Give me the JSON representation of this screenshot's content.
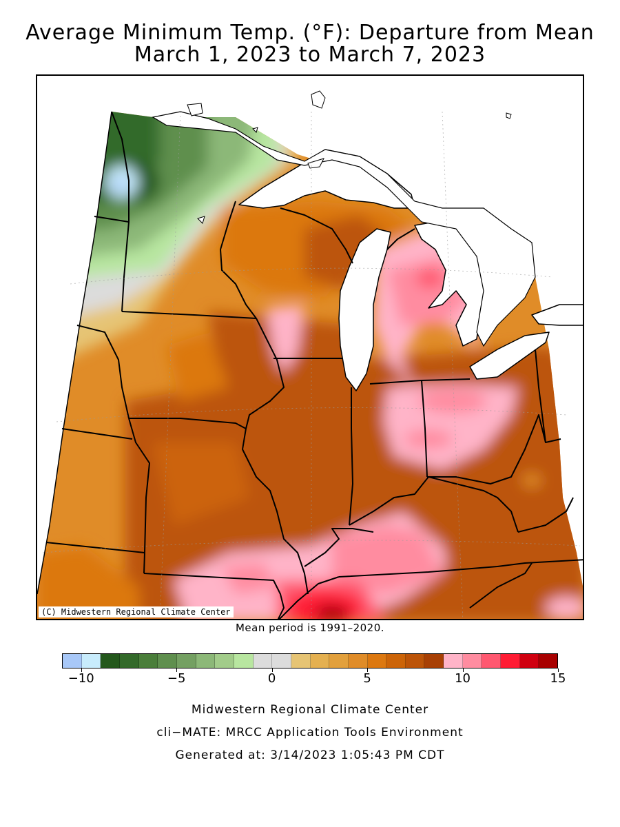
{
  "title": {
    "line1": "Average Minimum Temp. (°F): Departure from Mean",
    "line2": "March 1, 2023 to March 7, 2023"
  },
  "map": {
    "copyright": "(C) Midwestern Regional Climate Center",
    "region": "Upper Midwest",
    "variable": "Average minimum temperature departure from mean",
    "units": "°F"
  },
  "mean_note": "Mean period is 1991–2020.",
  "legend": {
    "colors": [
      "#a8c8f8",
      "#c8ecfc",
      "#24581c",
      "#336a2a",
      "#4a7e3a",
      "#5f8f4e",
      "#74a062",
      "#8cb878",
      "#a2cc8a",
      "#b8e6a0",
      "#dcdcdc",
      "#dcdcdc",
      "#e6c474",
      "#e4b050",
      "#e2a03c",
      "#e08c28",
      "#dc7810",
      "#cc6408",
      "#bc5408",
      "#a84004",
      "#ffb4c8",
      "#ff8ca0",
      "#ff5870",
      "#ff1c34",
      "#d00010",
      "#a80000"
    ],
    "tick_labels": [
      "−10",
      "−5",
      "0",
      "5",
      "10",
      "15"
    ],
    "tick_values": [
      -10,
      -5,
      0,
      5,
      10,
      15
    ],
    "range": [
      -11,
      15
    ]
  },
  "footer": {
    "line1": "Midwestern Regional Climate Center",
    "line2": "cli−MATE: MRCC Application Tools Environment",
    "line3": "Generated at: 3/14/2023 1:05:43 PM CDT"
  }
}
